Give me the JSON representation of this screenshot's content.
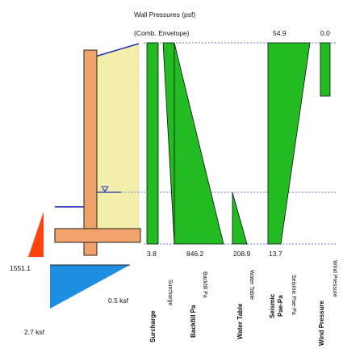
{
  "diagram": {
    "title": "Wall Pressures (psf)",
    "subtitle": "(Comb. Envelope)",
    "top_values": {
      "seismic": "54.9",
      "wind": "0.0"
    },
    "bottom_values": {
      "surcharge": "3.8",
      "backfill": "846.2",
      "water": "208.9",
      "seismic": "13.7"
    },
    "column_labels": {
      "surcharge": "Surcharge",
      "backfill": "Backfill Pa",
      "water": "Water Table",
      "seismic_1": "Seismic",
      "seismic_2": "Pae-Pa",
      "wind": "Wind Pressure"
    },
    "mirrored_labels": {
      "surcharge": "Surcharge",
      "backfill": "Backfill Pa",
      "water": "Water Table",
      "seismic": "Seismic Pae-Pa",
      "wind": "Wind Pressure"
    },
    "soil": {
      "toe_pressure": "1551.1",
      "bearing_left": "2.7 ksf",
      "bearing_right": "0.5 ksf"
    },
    "colors": {
      "pressure_fill": "#22bb22",
      "backfill_soil": "#f3eeaa",
      "footing": "#f0a36a",
      "stem": "#f0a36a",
      "bearing": "#1e8fe0",
      "toe": "#ff4411",
      "water_line": "#2233bb"
    }
  }
}
